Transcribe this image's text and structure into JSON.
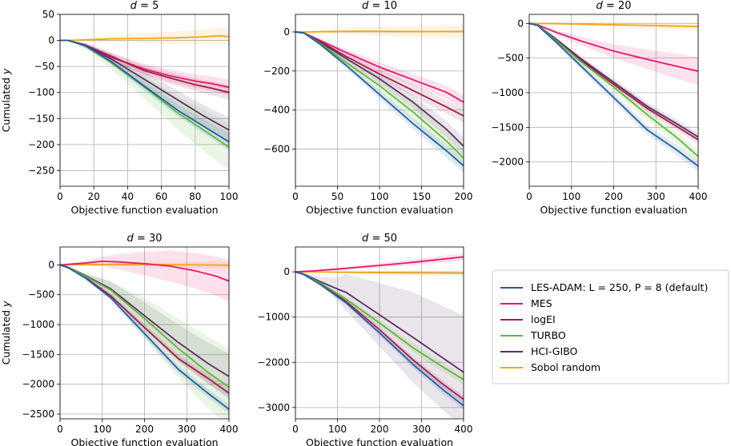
{
  "chart_data": [
    {
      "type": "line",
      "title": "d = 5",
      "xlabel": "Objective function evaluation",
      "ylabel": "Cumulated y",
      "xlim": [
        0,
        100
      ],
      "ylim": [
        -280,
        50
      ],
      "xticks": [
        0,
        20,
        40,
        60,
        80,
        100
      ],
      "yticks": [
        50,
        0,
        -50,
        -100,
        -150,
        -200,
        -250
      ],
      "grid": true,
      "series": [
        {
          "name": "LES-ADAM: L = 250, P = 8 (default)",
          "x": [
            0,
            5,
            15,
            30,
            50,
            70,
            90,
            100
          ],
          "values": [
            0,
            0,
            -10,
            -40,
            -88,
            -135,
            -175,
            -195
          ],
          "band": [
            0,
            0,
            3,
            6,
            9,
            12,
            15,
            17
          ]
        },
        {
          "name": "MES",
          "x": [
            0,
            5,
            15,
            30,
            50,
            65,
            80,
            90,
            100
          ],
          "values": [
            0,
            0,
            -10,
            -32,
            -55,
            -68,
            -78,
            -83,
            -90
          ],
          "band": [
            0,
            0,
            4,
            8,
            10,
            12,
            13,
            14,
            15
          ]
        },
        {
          "name": "logEI",
          "x": [
            0,
            5,
            15,
            30,
            50,
            65,
            80,
            90,
            100
          ],
          "values": [
            0,
            0,
            -9,
            -30,
            -58,
            -72,
            -85,
            -92,
            -100
          ],
          "band": [
            0,
            0,
            4,
            7,
            9,
            11,
            12,
            13,
            14
          ]
        },
        {
          "name": "TURBO",
          "x": [
            0,
            5,
            15,
            30,
            50,
            70,
            85,
            100
          ],
          "values": [
            0,
            0,
            -11,
            -42,
            -90,
            -140,
            -172,
            -205
          ],
          "band": [
            0,
            0,
            5,
            12,
            22,
            32,
            40,
            45
          ]
        },
        {
          "name": "HCI-GIBO",
          "x": [
            0,
            5,
            15,
            30,
            50,
            70,
            85,
            100
          ],
          "values": [
            0,
            0,
            -10,
            -35,
            -75,
            -115,
            -145,
            -172
          ],
          "band": [
            0,
            0,
            4,
            9,
            14,
            18,
            21,
            24
          ]
        },
        {
          "name": "Sobol random",
          "x": [
            0,
            5,
            15,
            30,
            50,
            70,
            85,
            95,
            100
          ],
          "values": [
            0,
            0,
            1,
            3,
            4,
            5,
            7,
            9,
            7
          ],
          "band": [
            0,
            0,
            3,
            6,
            9,
            12,
            14,
            15,
            16
          ]
        }
      ]
    },
    {
      "type": "line",
      "title": "d = 10",
      "xlabel": "Objective function evaluation",
      "ylabel": "",
      "xlim": [
        0,
        200
      ],
      "ylim": [
        -790,
        90
      ],
      "xticks": [
        0,
        50,
        100,
        150,
        200
      ],
      "yticks": [
        0,
        -200,
        -400,
        -600
      ],
      "grid": true,
      "series": [
        {
          "name": "LES-ADAM: L = 250, P = 8 (default)",
          "x": [
            0,
            10,
            30,
            60,
            100,
            140,
            180,
            200
          ],
          "values": [
            0,
            -5,
            -65,
            -170,
            -320,
            -470,
            -610,
            -685
          ],
          "band": [
            0,
            2,
            8,
            15,
            22,
            28,
            34,
            38
          ]
        },
        {
          "name": "MES",
          "x": [
            0,
            10,
            30,
            60,
            100,
            140,
            180,
            200
          ],
          "values": [
            0,
            -5,
            -45,
            -105,
            -180,
            -245,
            -310,
            -360
          ],
          "band": [
            0,
            3,
            10,
            18,
            25,
            30,
            34,
            36
          ]
        },
        {
          "name": "logEI",
          "x": [
            0,
            10,
            30,
            60,
            100,
            140,
            180,
            200
          ],
          "values": [
            0,
            -5,
            -50,
            -125,
            -215,
            -300,
            -385,
            -430
          ],
          "band": [
            0,
            3,
            10,
            18,
            24,
            30,
            34,
            36
          ]
        },
        {
          "name": "TURBO",
          "x": [
            0,
            10,
            30,
            60,
            100,
            140,
            180,
            200
          ],
          "values": [
            0,
            -5,
            -60,
            -155,
            -275,
            -410,
            -560,
            -645
          ],
          "band": [
            0,
            3,
            12,
            22,
            34,
            46,
            56,
            60
          ]
        },
        {
          "name": "HCI-GIBO",
          "x": [
            0,
            10,
            30,
            60,
            100,
            140,
            180,
            200
          ],
          "values": [
            0,
            -5,
            -55,
            -135,
            -240,
            -360,
            -500,
            -585
          ],
          "band": [
            0,
            3,
            10,
            18,
            26,
            34,
            42,
            46
          ]
        },
        {
          "name": "Sobol random",
          "x": [
            0,
            10,
            40,
            80,
            120,
            160,
            200
          ],
          "values": [
            0,
            0,
            2,
            4,
            3,
            2,
            3
          ],
          "band": [
            0,
            4,
            12,
            20,
            26,
            30,
            32
          ]
        }
      ]
    },
    {
      "type": "line",
      "title": "d = 20",
      "xlabel": "Objective function evaluation",
      "ylabel": "",
      "xlim": [
        0,
        400
      ],
      "ylim": [
        -2350,
        130
      ],
      "xticks": [
        0,
        100,
        200,
        300,
        400
      ],
      "yticks": [
        0,
        -500,
        -1000,
        -1500,
        -2000
      ],
      "grid": true,
      "series": [
        {
          "name": "LES-ADAM: L = 250, P = 8 (default)",
          "x": [
            0,
            20,
            60,
            120,
            200,
            280,
            350,
            400
          ],
          "values": [
            0,
            -30,
            -250,
            -600,
            -1070,
            -1540,
            -1830,
            -2060
          ],
          "band": [
            0,
            10,
            30,
            50,
            60,
            70,
            75,
            80
          ]
        },
        {
          "name": "MES",
          "x": [
            0,
            20,
            60,
            120,
            200,
            280,
            350,
            400
          ],
          "values": [
            0,
            -20,
            -120,
            -250,
            -400,
            -520,
            -620,
            -690
          ],
          "band": [
            0,
            10,
            30,
            60,
            100,
            140,
            180,
            200
          ]
        },
        {
          "name": "logEI",
          "x": [
            0,
            20,
            60,
            120,
            200,
            280,
            350,
            400
          ],
          "values": [
            0,
            -25,
            -220,
            -520,
            -880,
            -1230,
            -1490,
            -1680
          ],
          "band": [
            0,
            10,
            25,
            40,
            50,
            55,
            60,
            60
          ]
        },
        {
          "name": "TURBO",
          "x": [
            0,
            20,
            60,
            120,
            200,
            280,
            350,
            400
          ],
          "values": [
            0,
            -25,
            -230,
            -540,
            -920,
            -1320,
            -1650,
            -1920
          ],
          "band": [
            0,
            10,
            30,
            50,
            65,
            75,
            80,
            85
          ]
        },
        {
          "name": "HCI-GIBO",
          "x": [
            0,
            20,
            60,
            120,
            200,
            280,
            350,
            400
          ],
          "values": [
            0,
            -25,
            -210,
            -500,
            -850,
            -1200,
            -1450,
            -1640
          ],
          "band": [
            0,
            10,
            25,
            40,
            50,
            55,
            60,
            60
          ]
        },
        {
          "name": "Sobol random",
          "x": [
            0,
            20,
            80,
            160,
            240,
            320,
            400
          ],
          "values": [
            0,
            0,
            -5,
            -15,
            -25,
            -35,
            -45
          ],
          "band": [
            0,
            8,
            20,
            30,
            40,
            48,
            55
          ]
        }
      ]
    },
    {
      "type": "line",
      "title": "d = 30",
      "xlabel": "Objective function evaluation",
      "ylabel": "Cumulated y",
      "xlim": [
        0,
        400
      ],
      "ylim": [
        -2580,
        300
      ],
      "xticks": [
        0,
        100,
        200,
        300,
        400
      ],
      "yticks": [
        0,
        -500,
        -1000,
        -1500,
        -2000,
        -2500
      ],
      "grid": true,
      "series": [
        {
          "name": "LES-ADAM: L = 250, P = 8 (default)",
          "x": [
            0,
            20,
            60,
            120,
            200,
            280,
            350,
            400
          ],
          "values": [
            0,
            -50,
            -220,
            -550,
            -1150,
            -1750,
            -2150,
            -2420
          ],
          "band": [
            0,
            10,
            30,
            50,
            60,
            70,
            75,
            80
          ]
        },
        {
          "name": "MES",
          "x": [
            0,
            20,
            60,
            100,
            140,
            200,
            260,
            320,
            370,
            400
          ],
          "values": [
            0,
            10,
            30,
            60,
            50,
            20,
            -20,
            -100,
            -190,
            -270
          ],
          "band": [
            0,
            15,
            40,
            80,
            130,
            200,
            260,
            300,
            330,
            350
          ]
        },
        {
          "name": "logEI",
          "x": [
            0,
            20,
            60,
            120,
            200,
            280,
            350,
            400
          ],
          "values": [
            0,
            -50,
            -210,
            -520,
            -1050,
            -1570,
            -1900,
            -2150
          ],
          "band": [
            0,
            10,
            30,
            45,
            55,
            65,
            70,
            75
          ]
        },
        {
          "name": "TURBO",
          "x": [
            0,
            20,
            60,
            120,
            200,
            280,
            350,
            400
          ],
          "values": [
            0,
            -45,
            -190,
            -420,
            -900,
            -1400,
            -1800,
            -2050
          ],
          "band": [
            0,
            10,
            40,
            150,
            350,
            500,
            600,
            650
          ]
        },
        {
          "name": "HCI-GIBO",
          "x": [
            0,
            20,
            60,
            120,
            200,
            280,
            350,
            400
          ],
          "values": [
            0,
            -40,
            -180,
            -400,
            -850,
            -1300,
            -1650,
            -1870
          ],
          "band": [
            0,
            10,
            40,
            120,
            220,
            300,
            350,
            380
          ]
        },
        {
          "name": "Sobol random",
          "x": [
            0,
            20,
            80,
            160,
            240,
            320,
            400
          ],
          "values": [
            0,
            0,
            5,
            10,
            5,
            0,
            -5
          ],
          "band": [
            0,
            10,
            25,
            35,
            45,
            55,
            60
          ]
        }
      ]
    },
    {
      "type": "line",
      "title": "d = 50",
      "xlabel": "Objective function evaluation",
      "ylabel": "",
      "xlim": [
        0,
        400
      ],
      "ylim": [
        -3250,
        550
      ],
      "xticks": [
        0,
        100,
        200,
        300,
        400
      ],
      "yticks": [
        0,
        -1000,
        -2000,
        -3000
      ],
      "grid": true,
      "series": [
        {
          "name": "LES-ADAM: L = 250, P = 8 (default)",
          "x": [
            0,
            20,
            60,
            120,
            200,
            280,
            350,
            400
          ],
          "values": [
            0,
            -60,
            -280,
            -680,
            -1350,
            -2050,
            -2600,
            -2960
          ],
          "band": [
            0,
            10,
            30,
            50,
            70,
            80,
            90,
            95
          ]
        },
        {
          "name": "MES",
          "x": [
            0,
            40,
            100,
            160,
            220,
            280,
            340,
            400
          ],
          "values": [
            0,
            20,
            60,
            110,
            160,
            210,
            270,
            330
          ],
          "band": [
            0,
            15,
            30,
            45,
            55,
            65,
            75,
            80
          ]
        },
        {
          "name": "logEI",
          "x": [
            0,
            20,
            60,
            120,
            200,
            280,
            350,
            400
          ],
          "values": [
            0,
            -60,
            -270,
            -650,
            -1280,
            -1950,
            -2480,
            -2820
          ],
          "band": [
            0,
            10,
            30,
            50,
            65,
            75,
            80,
            85
          ]
        },
        {
          "name": "TURBO",
          "x": [
            0,
            20,
            60,
            120,
            200,
            280,
            350,
            400
          ],
          "values": [
            0,
            -55,
            -250,
            -600,
            -1130,
            -1680,
            -2100,
            -2380
          ],
          "band": [
            0,
            10,
            35,
            60,
            80,
            95,
            105,
            110
          ]
        },
        {
          "name": "HCI-GIBO",
          "x": [
            0,
            20,
            60,
            100,
            120,
            200,
            280,
            350,
            400
          ],
          "values": [
            0,
            -50,
            -220,
            -380,
            -450,
            -950,
            -1450,
            -1900,
            -2220
          ],
          "band": [
            0,
            20,
            100,
            250,
            400,
            700,
            1000,
            1150,
            1250
          ]
        },
        {
          "name": "Sobol random",
          "x": [
            0,
            20,
            80,
            160,
            240,
            320,
            400
          ],
          "values": [
            0,
            0,
            -5,
            -15,
            -20,
            -25,
            -30
          ],
          "band": [
            0,
            10,
            25,
            35,
            45,
            55,
            60
          ]
        }
      ]
    }
  ],
  "legend": {
    "position": "right-of-bottom-row",
    "entries": [
      {
        "label": "LES-ADAM: L = 250, P = 8 (default)",
        "color": "#1f5fa6"
      },
      {
        "label": "MES",
        "color": "#e8176a"
      },
      {
        "label": "logEI",
        "color": "#a11d4a"
      },
      {
        "label": "TURBO",
        "color": "#5cb833"
      },
      {
        "label": "HCI-GIBO",
        "color": "#5e2e66"
      },
      {
        "label": "Sobol random",
        "color": "#f2a516"
      }
    ]
  },
  "colors": {
    "LES-ADAM: L = 250, P = 8 (default)": "#1f5fa6",
    "MES": "#e8176a",
    "logEI": "#a11d4a",
    "TURBO": "#5cb833",
    "HCI-GIBO": "#5e2e66",
    "Sobol random": "#f2a516"
  }
}
